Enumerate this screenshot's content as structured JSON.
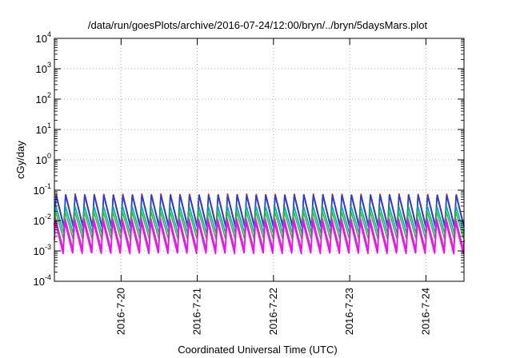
{
  "chart_data": {
    "type": "line",
    "title": "/data/run/goesPlots/archive/2016-07-24/12:00/bryn/../bryn/5daysMars.plot",
    "xlabel": "Coordinated Universal Time (UTC)",
    "ylabel": "cGy/day",
    "yscale": "log",
    "ylim": [
      0.0001,
      10000
    ],
    "xlim": [
      "2016-07-19 03:00",
      "2016-07-24 12:00"
    ],
    "grid": true,
    "legend": "none",
    "y_ticks": [
      {
        "value": 0.0001,
        "mantissa": "10",
        "exp": "-4"
      },
      {
        "value": 0.001,
        "mantissa": "10",
        "exp": "-3"
      },
      {
        "value": 0.01,
        "mantissa": "10",
        "exp": "-2"
      },
      {
        "value": 0.1,
        "mantissa": "10",
        "exp": "-1"
      },
      {
        "value": 1,
        "mantissa": "10",
        "exp": "0"
      },
      {
        "value": 10,
        "mantissa": "10",
        "exp": "1"
      },
      {
        "value": 100,
        "mantissa": "10",
        "exp": "2"
      },
      {
        "value": 1000,
        "mantissa": "10",
        "exp": "3"
      },
      {
        "value": 10000,
        "mantissa": "10",
        "exp": "4"
      }
    ],
    "x_ticks": [
      {
        "value": "2016-07-20 00:00",
        "label": "2016-7-20"
      },
      {
        "value": "2016-07-21 00:00",
        "label": "2016-7-21"
      },
      {
        "value": "2016-07-22 00:00",
        "label": "2016-7-22"
      },
      {
        "value": "2016-07-23 00:00",
        "label": "2016-7-23"
      },
      {
        "value": "2016-07-24 00:00",
        "label": "2016-7-24"
      }
    ],
    "oscillation": {
      "cycles_per_day": 8
    },
    "series": [
      {
        "color": "#ee0000",
        "peak": 0.075,
        "trough": 0.0065
      },
      {
        "color": "#1144ee",
        "peak": 0.07,
        "trough": 0.006
      },
      {
        "color": "#00aaaa",
        "peak": 0.03,
        "trough": 0.0038
      },
      {
        "color": "#33bb33",
        "peak": 0.02,
        "trough": 0.0025
      },
      {
        "color": "#cc33cc",
        "peak": 0.012,
        "trough": 0.0011
      },
      {
        "color": "#ff00ff",
        "peak": 0.009,
        "trough": 0.0008
      }
    ]
  }
}
